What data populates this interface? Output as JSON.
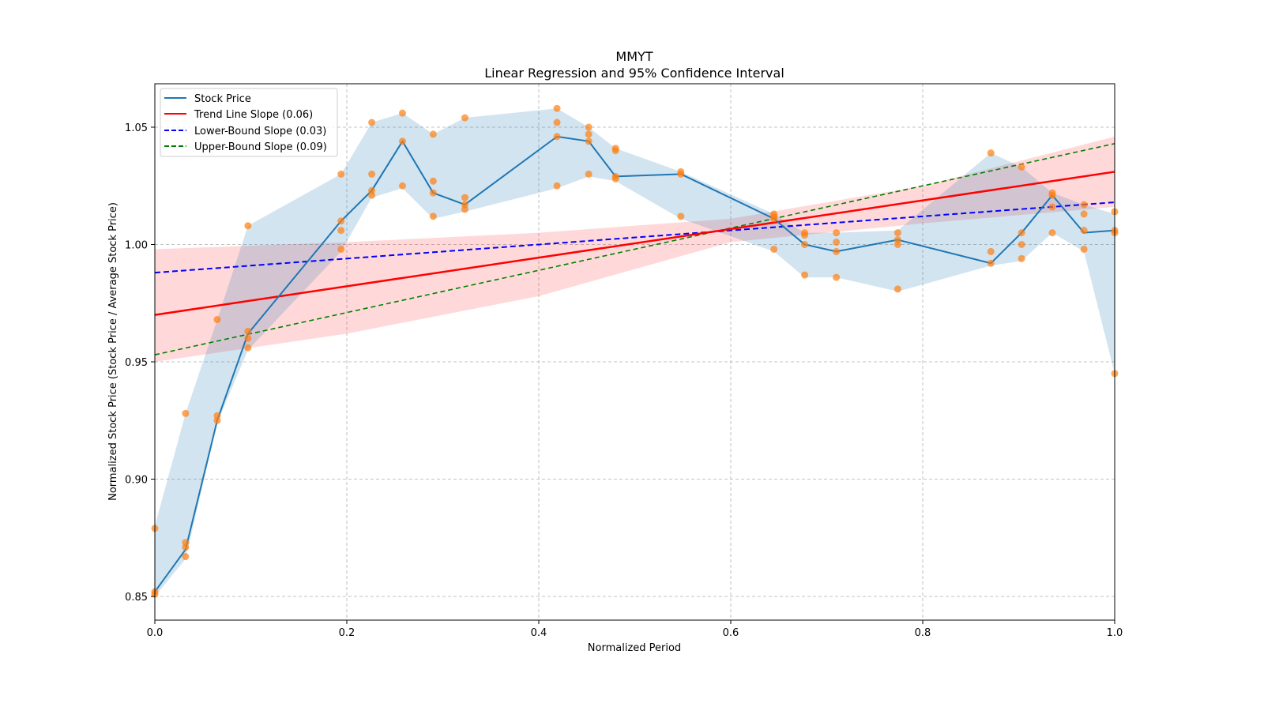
{
  "chart_data": {
    "type": "line",
    "title": "MMYT",
    "subtitle": "Linear Regression and 95% Confidence Interval",
    "xlabel": "Normalized Period",
    "ylabel": "Normalized Stock Price (Stock Price / Average Stock Price)",
    "xlim": [
      0.0,
      1.0
    ],
    "ylim": [
      0.84,
      1.068
    ],
    "xticks": [
      "0.0",
      "0.2",
      "0.4",
      "0.6",
      "0.8",
      "1.0"
    ],
    "xtick_values": [
      0.0,
      0.2,
      0.4,
      0.6,
      0.8,
      1.0
    ],
    "yticks": [
      "0.85",
      "0.90",
      "0.95",
      "1.00",
      "1.05"
    ],
    "ytick_values": [
      0.85,
      0.9,
      0.95,
      1.0,
      1.05
    ],
    "grid": true,
    "legend_position": "upper-left",
    "legend": [
      {
        "label": "Stock Price",
        "color": "#1f77b4",
        "style": "solid"
      },
      {
        "label": "Trend Line Slope (0.06)",
        "color": "#ff0000",
        "style": "solid"
      },
      {
        "label": "Lower-Bound Slope (0.03)",
        "color": "#0000ff",
        "style": "dashed"
      },
      {
        "label": "Upper-Bound Slope (0.09)",
        "color": "#008000",
        "style": "dashed"
      }
    ],
    "stock_price_line": {
      "name": "Stock Price",
      "color": "#1f77b4",
      "x": [
        0.0,
        0.032,
        0.065,
        0.097,
        0.194,
        0.226,
        0.258,
        0.29,
        0.323,
        0.419,
        0.452,
        0.48,
        0.548,
        0.645,
        0.677,
        0.71,
        0.774,
        0.871,
        0.903,
        0.935,
        0.968,
        1.0
      ],
      "y": [
        0.852,
        0.87,
        0.925,
        0.962,
        1.01,
        1.023,
        1.044,
        1.022,
        1.017,
        1.046,
        1.044,
        1.029,
        1.03,
        1.011,
        1.0,
        0.997,
        1.002,
        0.992,
        1.005,
        1.021,
        1.005,
        1.006
      ]
    },
    "stock_price_band": {
      "name": "Stock Price CI",
      "color": "#1f77b4",
      "lower": [
        0.85,
        0.866,
        0.924,
        0.955,
        0.997,
        1.02,
        1.024,
        1.011,
        1.014,
        1.024,
        1.029,
        1.027,
        1.011,
        0.997,
        0.986,
        0.986,
        0.98,
        0.991,
        0.993,
        1.005,
        0.997,
        0.945
      ],
      "upper": [
        0.88,
        0.928,
        0.968,
        1.008,
        1.03,
        1.052,
        1.056,
        1.047,
        1.054,
        1.058,
        1.05,
        1.041,
        1.031,
        1.013,
        1.005,
        1.005,
        1.006,
        1.039,
        1.033,
        1.022,
        1.017,
        1.013
      ]
    },
    "scatter_points": {
      "name": "Observations",
      "color": "#ff7f0e",
      "points": [
        [
          0.0,
          0.879
        ],
        [
          0.0,
          0.852
        ],
        [
          0.0,
          0.851
        ],
        [
          0.032,
          0.928
        ],
        [
          0.032,
          0.873
        ],
        [
          0.032,
          0.871
        ],
        [
          0.032,
          0.867
        ],
        [
          0.065,
          0.968
        ],
        [
          0.065,
          0.927
        ],
        [
          0.065,
          0.925
        ],
        [
          0.097,
          1.008
        ],
        [
          0.097,
          0.963
        ],
        [
          0.097,
          0.96
        ],
        [
          0.097,
          0.956
        ],
        [
          0.194,
          1.03
        ],
        [
          0.194,
          1.01
        ],
        [
          0.194,
          1.006
        ],
        [
          0.194,
          0.998
        ],
        [
          0.226,
          1.052
        ],
        [
          0.226,
          1.03
        ],
        [
          0.226,
          1.023
        ],
        [
          0.226,
          1.021
        ],
        [
          0.258,
          1.056
        ],
        [
          0.258,
          1.044
        ],
        [
          0.258,
          1.025
        ],
        [
          0.29,
          1.047
        ],
        [
          0.29,
          1.027
        ],
        [
          0.29,
          1.022
        ],
        [
          0.29,
          1.012
        ],
        [
          0.323,
          1.054
        ],
        [
          0.323,
          1.02
        ],
        [
          0.323,
          1.017
        ],
        [
          0.323,
          1.015
        ],
        [
          0.419,
          1.058
        ],
        [
          0.419,
          1.052
        ],
        [
          0.419,
          1.046
        ],
        [
          0.419,
          1.025
        ],
        [
          0.452,
          1.05
        ],
        [
          0.452,
          1.047
        ],
        [
          0.452,
          1.044
        ],
        [
          0.452,
          1.03
        ],
        [
          0.48,
          1.041
        ],
        [
          0.48,
          1.04
        ],
        [
          0.48,
          1.029
        ],
        [
          0.48,
          1.028
        ],
        [
          0.548,
          1.031
        ],
        [
          0.548,
          1.03
        ],
        [
          0.548,
          1.012
        ],
        [
          0.645,
          1.013
        ],
        [
          0.645,
          1.012
        ],
        [
          0.645,
          1.011
        ],
        [
          0.645,
          0.998
        ],
        [
          0.677,
          1.005
        ],
        [
          0.677,
          1.004
        ],
        [
          0.677,
          1.0
        ],
        [
          0.677,
          0.987
        ],
        [
          0.71,
          1.005
        ],
        [
          0.71,
          1.001
        ],
        [
          0.71,
          0.997
        ],
        [
          0.71,
          0.986
        ],
        [
          0.774,
          1.005
        ],
        [
          0.774,
          1.002
        ],
        [
          0.774,
          1.0
        ],
        [
          0.774,
          0.981
        ],
        [
          0.871,
          1.039
        ],
        [
          0.871,
          0.997
        ],
        [
          0.871,
          0.992
        ],
        [
          0.903,
          1.033
        ],
        [
          0.903,
          1.005
        ],
        [
          0.903,
          1.0
        ],
        [
          0.903,
          0.994
        ],
        [
          0.935,
          1.022
        ],
        [
          0.935,
          1.021
        ],
        [
          0.935,
          1.016
        ],
        [
          0.935,
          1.005
        ],
        [
          0.968,
          1.017
        ],
        [
          0.968,
          1.013
        ],
        [
          0.968,
          1.006
        ],
        [
          0.968,
          0.998
        ],
        [
          1.0,
          1.014
        ],
        [
          1.0,
          1.006
        ],
        [
          1.0,
          1.005
        ],
        [
          1.0,
          0.945
        ]
      ]
    },
    "trend_line": {
      "name": "Trend Line Slope (0.06)",
      "color": "#ff0000",
      "slope": 0.06,
      "y_at_0": 0.97,
      "y_at_1": 1.031
    },
    "lower_bound_line": {
      "name": "Lower-Bound Slope (0.03)",
      "color": "#0000ff",
      "slope": 0.03,
      "y_at_0": 0.988,
      "y_at_1": 1.018
    },
    "upper_bound_line": {
      "name": "Upper-Bound Slope (0.09)",
      "color": "#008000",
      "slope": 0.09,
      "y_at_0": 0.953,
      "y_at_1": 1.043
    },
    "trend_band": {
      "name": "Trend 95% CI",
      "color": "#ff0000",
      "x": [
        0.0,
        0.2,
        0.4,
        0.6,
        0.8,
        1.0
      ],
      "lower": [
        0.95,
        0.962,
        0.978,
        1.001,
        1.009,
        1.016
      ],
      "upper": [
        0.998,
        1.001,
        1.005,
        1.011,
        1.025,
        1.046
      ]
    }
  }
}
